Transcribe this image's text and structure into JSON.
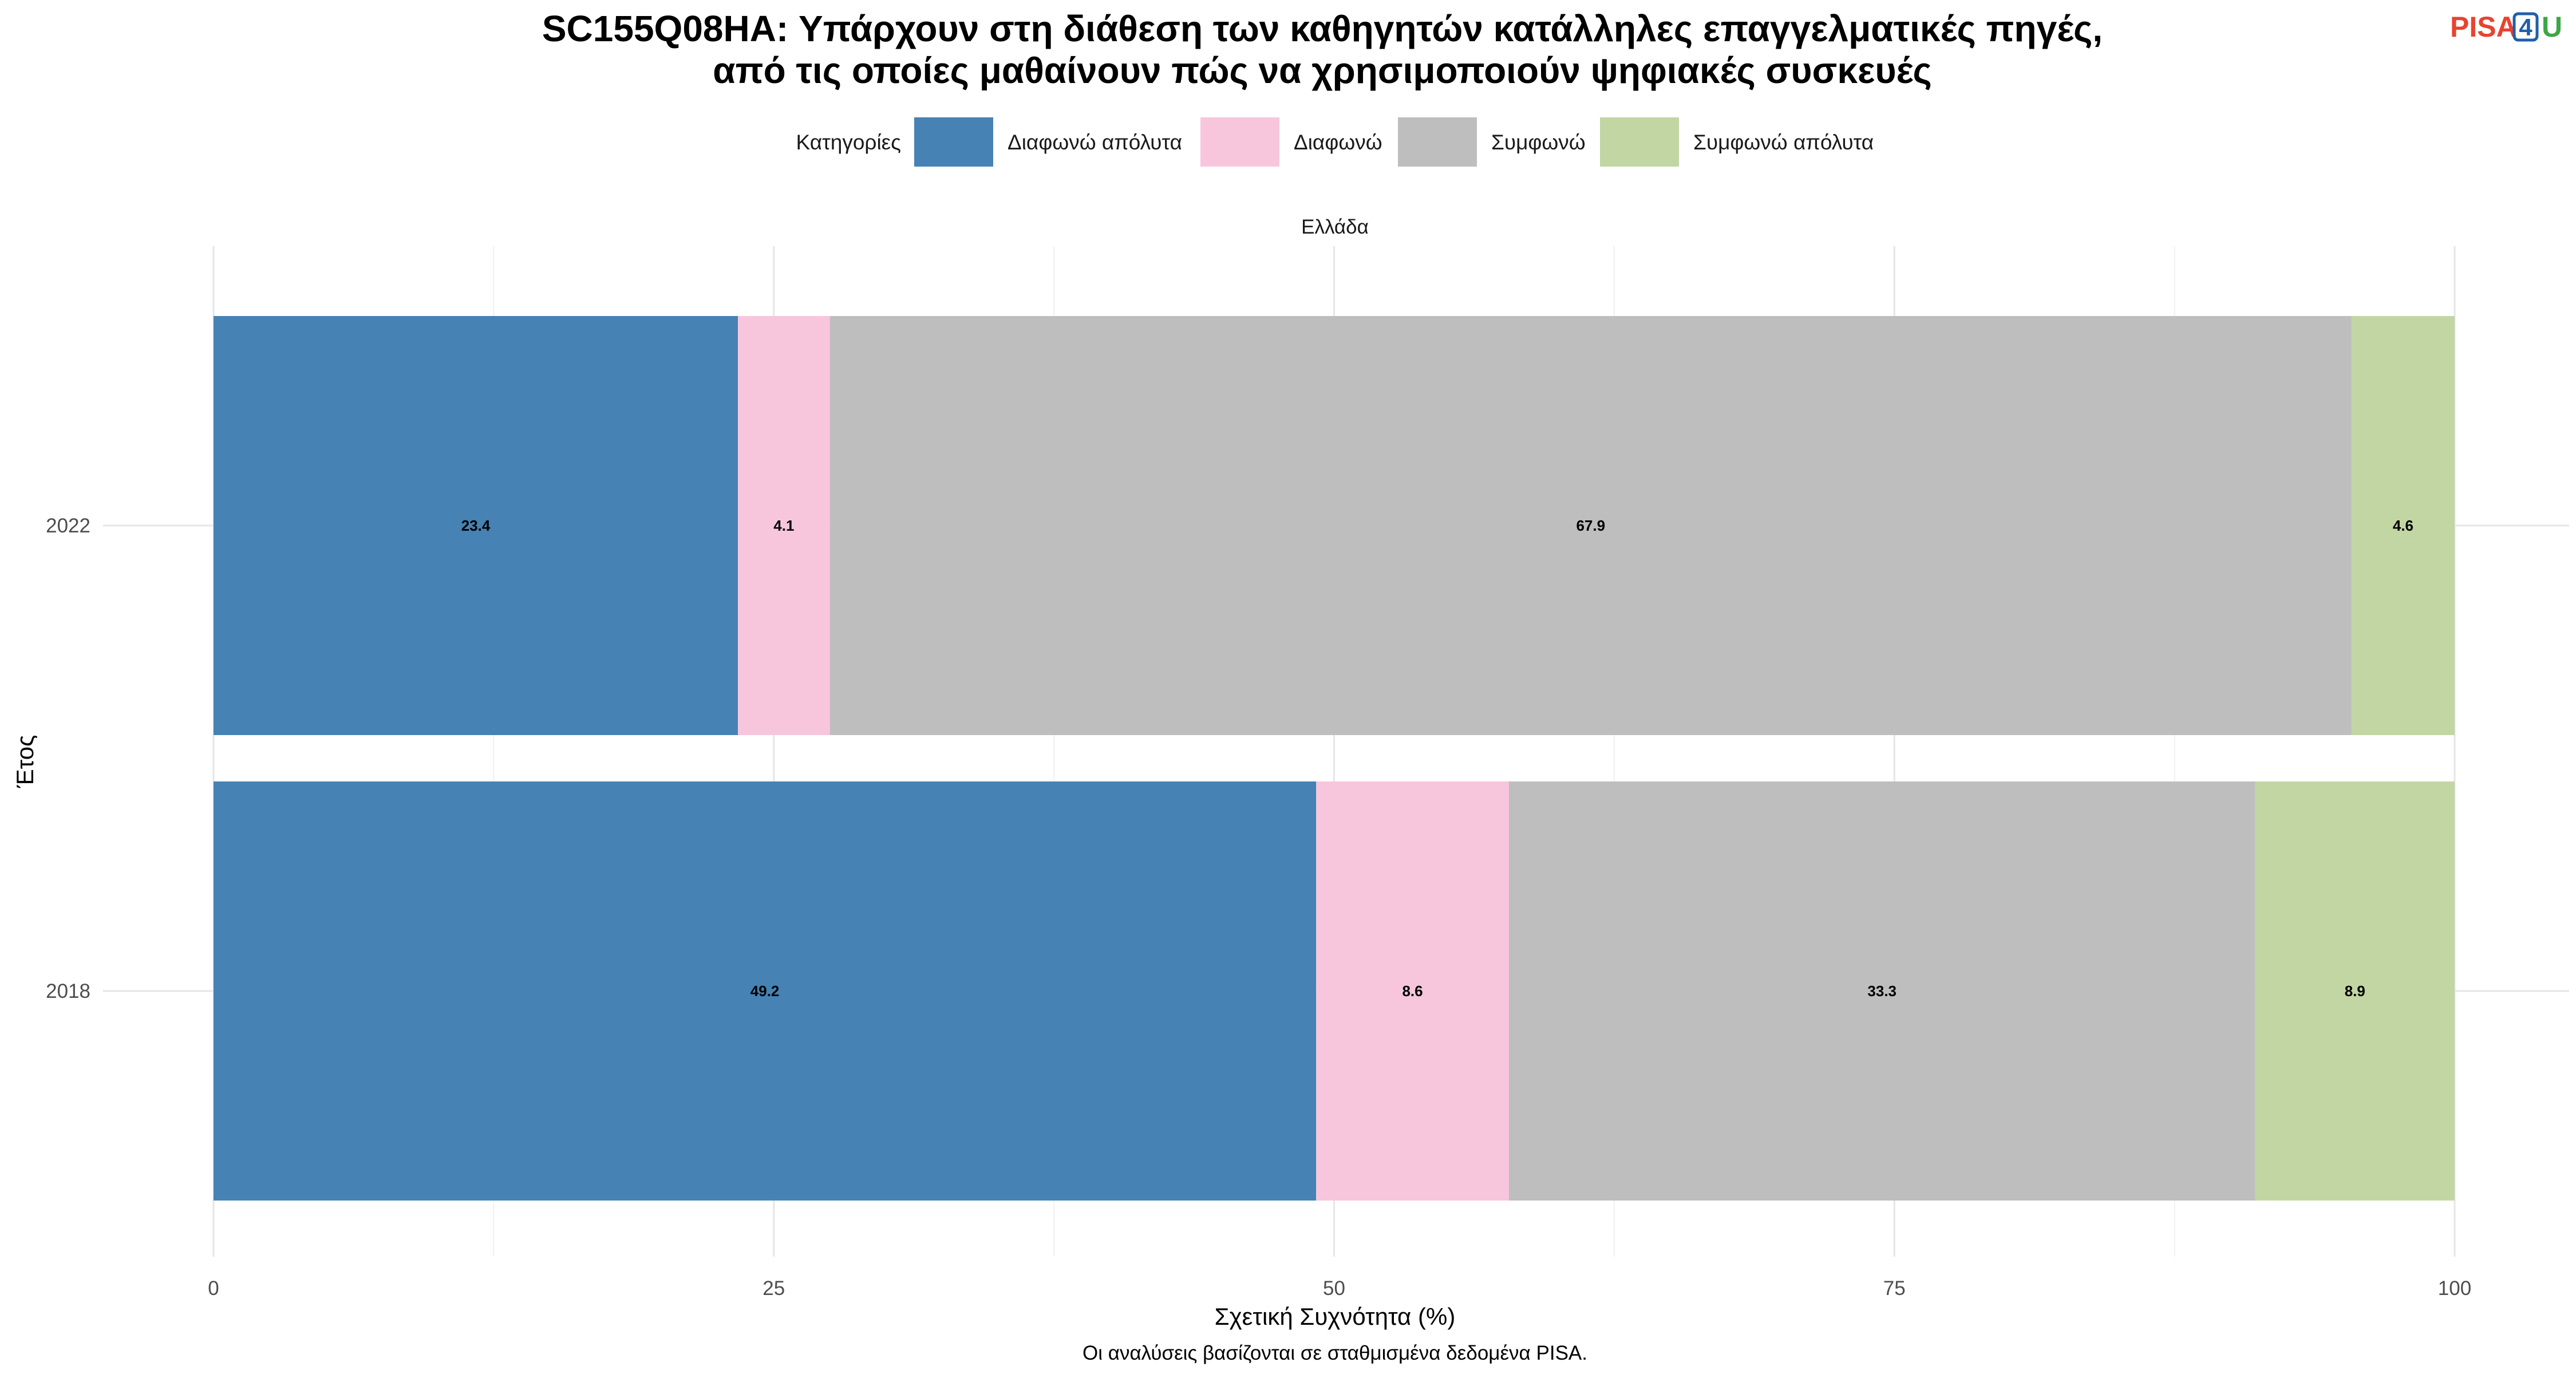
{
  "colors": {
    "Διαφωνώ απόλυτα": "#4682b4",
    "Διαφωνώ": "#f7c6dc",
    "Συμφωνώ": "#bebebe",
    "Συμφωνώ απόλυτα": "#c2d6a4",
    "logo_pisa": "#e8432f",
    "logo_4": "#1f5fa8",
    "logo_u": "#3aa845"
  },
  "logo": {
    "part1": "PISA",
    "part2": "4",
    "part3": "U"
  },
  "chart_data": {
    "type": "bar",
    "orientation": "horizontal",
    "stacked": true,
    "title_line1": "SC155Q08HA: Υπάρχουν στη διάθεση των καθηγητών κατάλληλες επαγγελματικές πηγές,",
    "title_line2": "από τις οποίες μαθαίνουν πώς να χρησιμοποιούν ψηφιακές συσκευές",
    "facet": "Ελλάδα",
    "legend_title": "Κατηγορίες",
    "legend_position": "top",
    "xlabel": "Σχετική Συχνότητα (%)",
    "ylabel": "Έτος",
    "caption": "Οι αναλύσεις βασίζονται σε σταθμισμένα δεδομένα PISA.",
    "xlim": [
      0,
      100
    ],
    "xticks": [
      0,
      25,
      50,
      75,
      100
    ],
    "categories": [
      "2022",
      "2018"
    ],
    "series": [
      {
        "name": "Διαφωνώ απόλυτα",
        "values": [
          23.4,
          49.2
        ]
      },
      {
        "name": "Διαφωνώ",
        "values": [
          4.1,
          8.6
        ]
      },
      {
        "name": "Συμφωνώ",
        "values": [
          67.9,
          33.3
        ]
      },
      {
        "name": "Συμφωνώ απόλυτα",
        "values": [
          4.6,
          8.9
        ]
      }
    ],
    "grid": true
  }
}
